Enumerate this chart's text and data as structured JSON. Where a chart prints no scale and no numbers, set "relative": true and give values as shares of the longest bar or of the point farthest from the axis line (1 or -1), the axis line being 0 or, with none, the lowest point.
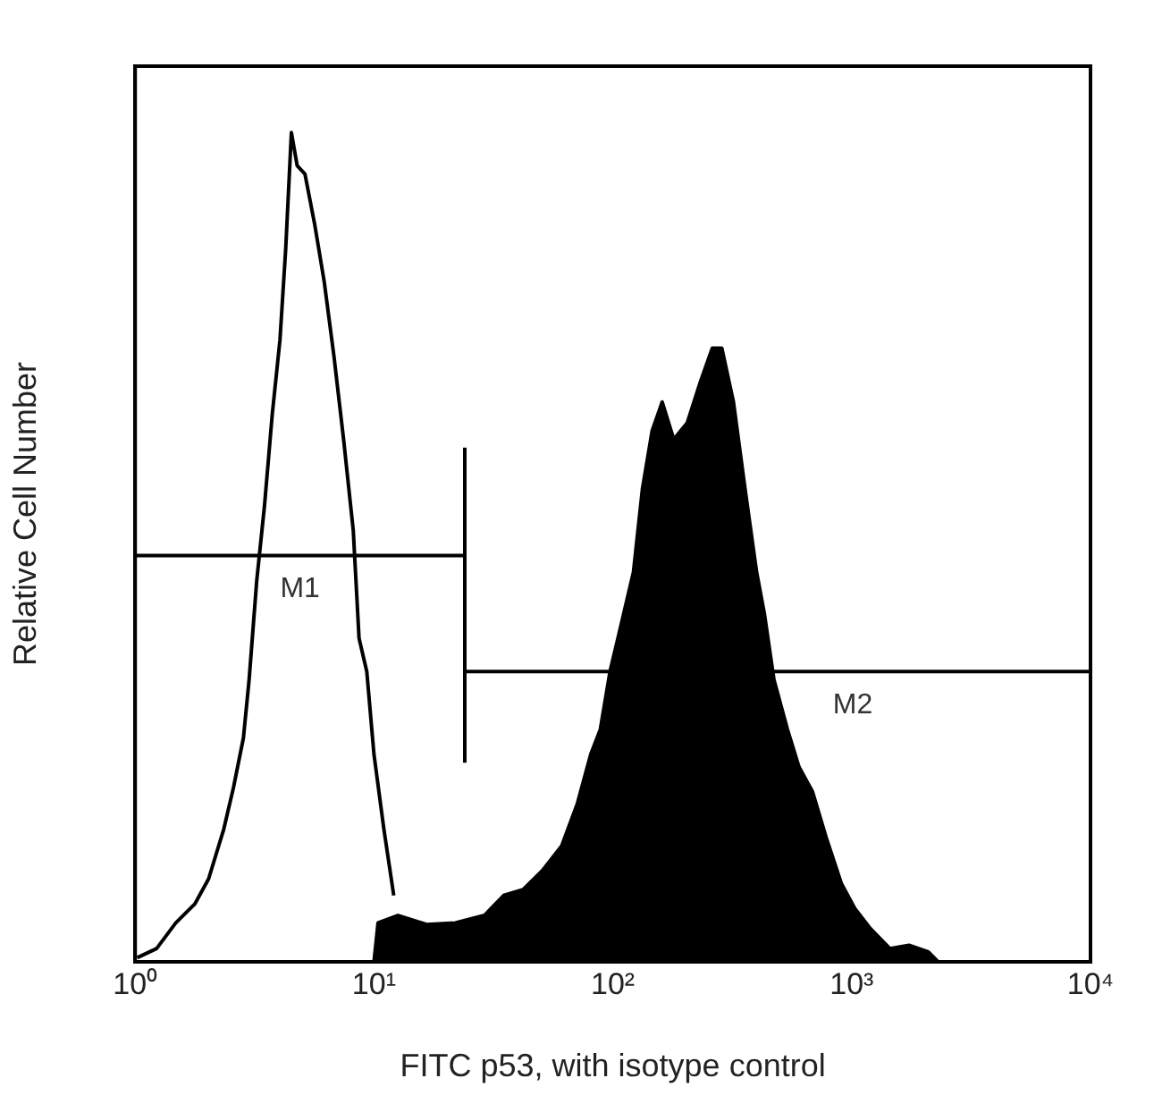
{
  "chart_data": {
    "type": "line",
    "xlabel": "FITC p53, with isotype control",
    "ylabel": "Relative Cell Number",
    "relative": true,
    "log": "x",
    "grid": false,
    "legend": false,
    "marker": "none",
    "line_style": "solid",
    "xlim": [
      1,
      10000
    ],
    "xticks": [
      {
        "value": 1,
        "label": "10⁰"
      },
      {
        "value": 10,
        "label": "10¹"
      },
      {
        "value": 100,
        "label": "10²"
      },
      {
        "value": 1000,
        "label": "10³"
      },
      {
        "value": 10000,
        "label": "10⁴"
      }
    ],
    "series": [
      {
        "type": "line",
        "color": "#000000",
        "x": [
          1.02,
          1.23,
          1.48,
          1.78,
          2.03,
          2.35,
          2.58,
          2.84,
          3.0,
          3.23,
          3.48,
          3.75,
          4.04,
          4.27,
          4.51,
          4.77,
          5.14,
          5.64,
          6.19,
          6.8,
          7.46,
          8.19,
          8.66,
          9.33,
          10.0,
          11.0,
          12.1
        ],
        "values": [
          0.005,
          0.016,
          0.047,
          0.07,
          0.1,
          0.16,
          0.21,
          0.27,
          0.34,
          0.46,
          0.55,
          0.66,
          0.75,
          0.86,
          1.0,
          0.96,
          0.95,
          0.89,
          0.82,
          0.73,
          0.63,
          0.52,
          0.39,
          0.35,
          0.25,
          0.16,
          0.08
        ]
      },
      {
        "type": "line",
        "name": "M1",
        "color": "#000000",
        "x": [
          1,
          24
        ],
        "values": [
          0.49,
          0.49
        ]
      },
      {
        "type": "line",
        "name": "M2",
        "color": "#000000",
        "x": [
          24,
          10000
        ],
        "values": [
          0.35,
          0.35
        ]
      },
      {
        "type": "line",
        "color": "#000000",
        "x": [
          24,
          24
        ],
        "values": [
          0.24,
          0.62
        ]
      },
      {
        "type": "area",
        "color": "#000000",
        "x": [
          10.0,
          10.4,
          12.6,
          16.6,
          21.9,
          29.0,
          34.9,
          42.1,
          50.7,
          61.1,
          70.9,
          80.8,
          88.6,
          97.3,
          107,
          122,
          133,
          146,
          161,
          180,
          205,
          233,
          261,
          286,
          320,
          358,
          400,
          431,
          473,
          539,
          602,
          686,
          782,
          907,
          1033,
          1199,
          1445,
          1738,
          2094,
          2300
        ],
        "values": [
          0,
          0.047,
          0.056,
          0.045,
          0.047,
          0.056,
          0.08,
          0.087,
          0.11,
          0.14,
          0.19,
          0.25,
          0.28,
          0.35,
          0.4,
          0.47,
          0.57,
          0.64,
          0.675,
          0.63,
          0.65,
          0.7,
          0.74,
          0.74,
          0.675,
          0.57,
          0.47,
          0.42,
          0.34,
          0.28,
          0.235,
          0.205,
          0.15,
          0.094,
          0.064,
          0.04,
          0.016,
          0.02,
          0.012,
          0
        ]
      }
    ]
  }
}
